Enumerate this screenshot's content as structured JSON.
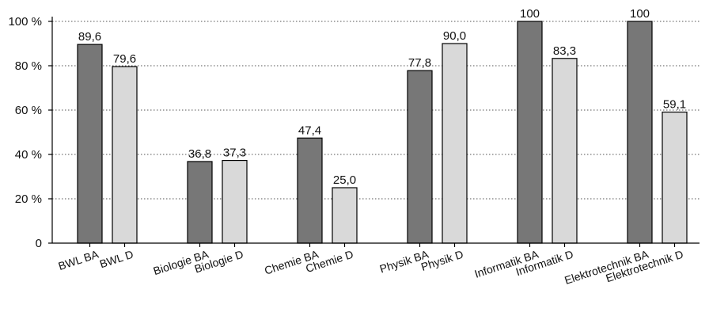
{
  "chart_data": {
    "type": "bar",
    "categories": [
      "BWL BA",
      "BWL D",
      "Biologie BA",
      "Biologie D",
      "Chemie BA",
      "Chemie D",
      "Physik BA",
      "Physik D",
      "Informatik BA",
      "Informatik D",
      "Elektrotechnik BA",
      "Elektrotechnik D"
    ],
    "values": [
      89.6,
      79.6,
      36.8,
      37.3,
      47.4,
      25.0,
      77.8,
      90.0,
      100,
      83.3,
      100,
      59.1
    ],
    "value_labels": [
      "89,6",
      "79,6",
      "36,8",
      "37,3",
      "47,4",
      "25,0",
      "77,8",
      "90,0",
      "100",
      "83,3",
      "100",
      "59,1"
    ],
    "y_ticks": [
      0,
      20,
      40,
      60,
      80,
      100
    ],
    "y_tick_labels": [
      "0",
      "20 %",
      "40 %",
      "60 %",
      "80 %",
      "100 %"
    ],
    "ylim": [
      0,
      100
    ],
    "grid": true,
    "colors": {
      "BA": "#777777",
      "D": "#d9d9d9"
    }
  }
}
